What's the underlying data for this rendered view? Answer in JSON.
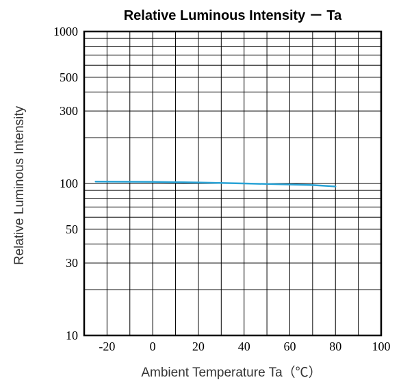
{
  "chart_data": {
    "type": "line",
    "title": "Relative Luminous Intensity － Ta",
    "xlabel": "Ambient Temperature  Ta（℃）",
    "ylabel": "Relative Luminous Intensity",
    "xlim": [
      -30,
      100
    ],
    "ylim": [
      10,
      1000
    ],
    "yscale": "log",
    "grid": true,
    "xticks": [
      -20,
      0,
      20,
      40,
      60,
      80,
      100
    ],
    "yticks": [
      10,
      30,
      50,
      100,
      300,
      500,
      1000
    ],
    "series": [
      {
        "color": "#29a3d6",
        "x": [
          -25,
          0,
          20,
          40,
          60,
          70,
          80
        ],
        "y": [
          103,
          102.5,
          101.5,
          100,
          98.5,
          97.5,
          95.5
        ]
      }
    ]
  }
}
